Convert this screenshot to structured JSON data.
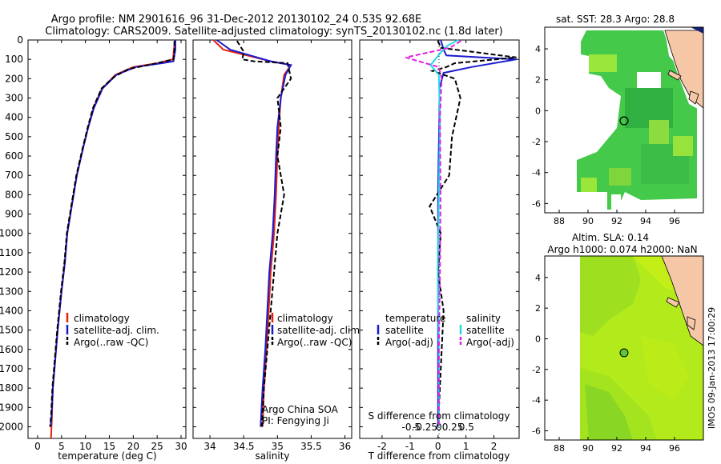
{
  "title_line1": "Argo profile: NM 2901616_96 31-Dec-2012 20130102_24 0.53S 92.68E",
  "title_line2": "Climatology: CARS2009. Satellite-adjusted climatology: synTS_20130102.nc (1.8d later)",
  "footer_stamp": "IMOS 09-Jan-2013 17:00:29",
  "colors": {
    "climatology": "#e8200c",
    "satellite_adj": "#1a1ad0",
    "argo": "#000000",
    "sal_satellite": "#22d8e8",
    "sal_argo": "#e020e0"
  },
  "chart_data": [
    {
      "type": "line",
      "xlabel": "temperature (deg C)",
      "ylabel": "",
      "xlim": [
        -2,
        31
      ],
      "ylim": [
        2060,
        0
      ],
      "xticks": [
        0,
        5,
        10,
        15,
        20,
        25,
        30
      ],
      "xtick_labels": [
        "0",
        "5",
        "10",
        "15",
        "20",
        "25",
        "30"
      ],
      "yticks": [
        0,
        100,
        200,
        300,
        400,
        500,
        600,
        700,
        800,
        900,
        1000,
        1100,
        1200,
        1300,
        1400,
        1500,
        1600,
        1700,
        1800,
        1900,
        2000
      ],
      "ytick_labels": [
        "0",
        "100",
        "200",
        "300",
        "400",
        "500",
        "600",
        "700",
        "800",
        "900",
        "1000",
        "1100",
        "1200",
        "1300",
        "1400",
        "1500",
        "1600",
        "1700",
        "1800",
        "1900",
        "2000"
      ],
      "legend": [
        "climatology",
        "satellite-adj. clim.",
        "Argo(..raw -QC)"
      ],
      "series": [
        {
          "name": "climatology",
          "color": "red",
          "style": "solid",
          "x": [
            28.7,
            28.5,
            28.3,
            25,
            20,
            16.3,
            13.5,
            11.7,
            10.6,
            9.6,
            8.2,
            7.2,
            6.2,
            5.7,
            5.0,
            4.2,
            3.7,
            3.2,
            3.0,
            2.8
          ],
          "y": [
            0,
            50,
            100,
            120,
            140,
            180,
            250,
            350,
            450,
            550,
            700,
            850,
            1000,
            1150,
            1300,
            1500,
            1650,
            1800,
            1950,
            2060
          ]
        },
        {
          "name": "satellite-adj. clim.",
          "color": "blue",
          "style": "solid",
          "x": [
            28.8,
            28.8,
            28.4,
            26,
            20.5,
            16.5,
            13.6,
            11.8,
            10.6,
            9.6,
            8.2,
            7.2,
            6.2,
            5.7,
            5.0,
            4.2,
            3.7,
            3.2,
            2.9,
            2.7
          ],
          "y": [
            0,
            50,
            110,
            120,
            140,
            180,
            250,
            350,
            450,
            550,
            700,
            850,
            1000,
            1150,
            1300,
            1500,
            1650,
            1800,
            1950,
            2000
          ]
        },
        {
          "name": "Argo(..raw -QC)",
          "color": "black",
          "style": "dashed",
          "x": [
            28.6,
            28.6,
            28.4,
            24,
            19,
            16,
            13.4,
            11.6,
            10.5,
            9.5,
            8.1,
            7.1,
            6.1,
            5.6,
            4.9,
            4.1,
            3.6,
            3.1,
            2.8,
            2.6
          ],
          "y": [
            5,
            50,
            100,
            125,
            150,
            190,
            250,
            350,
            450,
            550,
            700,
            850,
            1000,
            1150,
            1300,
            1500,
            1650,
            1800,
            1950,
            2000
          ]
        }
      ]
    },
    {
      "type": "line",
      "xlabel": "salinity",
      "ylabel": "",
      "xlim": [
        33.75,
        36.1
      ],
      "ylim": [
        2060,
        0
      ],
      "xticks": [
        34,
        34.5,
        35,
        35.5,
        36
      ],
      "xtick_labels": [
        "34",
        "34.5",
        "35",
        "35.5",
        "36"
      ],
      "legend": [
        "climatology",
        "satellite-adj. clim.",
        "Argo(..raw -QC)"
      ],
      "annotations": [
        "Argo China SOA",
        "PI: Fengying Ji"
      ],
      "series": [
        {
          "name": "climatology",
          "color": "red",
          "style": "solid",
          "x": [
            34.05,
            34.2,
            34.55,
            34.9,
            35.2,
            35.1,
            35.05,
            35.02,
            35.0,
            34.98,
            34.95,
            34.9,
            34.87,
            34.84,
            34.8,
            34.78
          ],
          "y": [
            0,
            50,
            80,
            110,
            130,
            180,
            300,
            450,
            600,
            800,
            1000,
            1200,
            1400,
            1600,
            1800,
            2000
          ]
        },
        {
          "name": "satellite-adj. clim.",
          "color": "blue",
          "style": "solid",
          "x": [
            34.1,
            34.3,
            34.6,
            34.9,
            35.2,
            35.12,
            35.05,
            35.0,
            34.98,
            34.96,
            34.93,
            34.88,
            34.85,
            34.82,
            34.78,
            34.75
          ],
          "y": [
            0,
            50,
            80,
            110,
            130,
            180,
            300,
            450,
            600,
            800,
            1000,
            1200,
            1400,
            1600,
            1800,
            2000
          ]
        },
        {
          "name": "Argo(..raw -QC)",
          "color": "black",
          "style": "dashed",
          "x": [
            34.4,
            34.5,
            34.48,
            34.65,
            35.15,
            35.2,
            35.0,
            35.05,
            35.0,
            35.1,
            35.0,
            34.95,
            34.9,
            34.85,
            34.8,
            34.77
          ],
          "y": [
            5,
            60,
            100,
            110,
            120,
            200,
            300,
            450,
            600,
            800,
            1000,
            1200,
            1400,
            1600,
            1800,
            2000
          ]
        }
      ]
    },
    {
      "type": "line",
      "xlabel": "T difference from climatology",
      "xlabel2": "S difference from climatology",
      "xlim": [
        -2.8,
        2.9
      ],
      "ylim": [
        2060,
        0
      ],
      "xticks": [
        -2,
        -1,
        0,
        1,
        2
      ],
      "xtick_labels": [
        "-2",
        "-1",
        "0",
        "1",
        "2"
      ],
      "xticks_sal": [
        -0.5,
        -0.25,
        0,
        0.25,
        0.5
      ],
      "xtick_labels_sal": [
        "-0.5",
        "-0.25",
        "0",
        "0.25",
        "0.5"
      ],
      "legend_headers": [
        "temperature",
        "salinity"
      ],
      "legend": [
        "satellite",
        "Argo(-adj)",
        "satellite",
        "Argo(-adj)"
      ],
      "series": [
        {
          "name": "satellite",
          "group": "temperature",
          "color": "blue",
          "style": "solid",
          "x": [
            0.1,
            0.2,
            0.3,
            2.8,
            1.2,
            0.2,
            0.05,
            0.05,
            0.02,
            0.0,
            0.0,
            0.0,
            0.0,
            0.0
          ],
          "y": [
            0,
            50,
            80,
            100,
            140,
            170,
            250,
            400,
            600,
            800,
            1000,
            1400,
            1800,
            2000
          ]
        },
        {
          "name": "Argo(-adj)",
          "group": "temperature",
          "color": "black",
          "style": "dashed",
          "x": [
            0.0,
            0.1,
            2.8,
            0.6,
            0.3,
            -0.2,
            0.6,
            0.8,
            0.5,
            0.4,
            -0.3,
            0.1,
            0.0,
            0.2,
            0.1,
            0.0
          ],
          "y": [
            5,
            40,
            90,
            120,
            140,
            160,
            200,
            300,
            500,
            700,
            860,
            1000,
            1200,
            1400,
            1700,
            2000
          ]
        },
        {
          "name": "satellite",
          "group": "salinity",
          "color": "cyan",
          "style": "solid",
          "x": [
            0.35,
            0.15,
            0.05,
            -0.15,
            0.0,
            0.02,
            0.0,
            -0.02,
            0.0,
            0.0,
            0.0
          ],
          "y": [
            0,
            30,
            60,
            130,
            180,
            400,
            800,
            1200,
            1600,
            1900,
            2000
          ]
        },
        {
          "name": "Argo(-adj)",
          "group": "salinity",
          "color": "magenta",
          "style": "dashed",
          "x": [
            0.4,
            0.2,
            -0.6,
            0.0,
            0.05,
            0.02,
            0.03,
            0.02,
            0.0,
            0.0,
            0.0
          ],
          "y": [
            5,
            40,
            90,
            140,
            200,
            400,
            800,
            1200,
            1600,
            1900,
            2000
          ]
        }
      ]
    },
    {
      "type": "heatmap",
      "title": "sat. SST: 28.3  Argo: 28.8",
      "xlim": [
        87,
        98
      ],
      "ylim": [
        -6.6,
        5.4
      ],
      "xticks": [
        88,
        90,
        92,
        94,
        96
      ],
      "xtick_labels": [
        "88",
        "90",
        "92",
        "94",
        "96"
      ],
      "yticks": [
        -6,
        -4,
        -2,
        0,
        2,
        4
      ],
      "ytick_labels": [
        "-6",
        "-4",
        "-2",
        "0",
        "2",
        "4"
      ],
      "argo_position": {
        "lon": 92.68,
        "lat": -0.53
      }
    },
    {
      "type": "heatmap",
      "title": "Altim. SLA: 0.14",
      "subtitle": "Argo h1000: 0.074 h2000: NaN",
      "xlim": [
        87,
        98
      ],
      "ylim": [
        -6.6,
        5.4
      ],
      "xticks": [
        88,
        90,
        92,
        94,
        96
      ],
      "xtick_labels": [
        "88",
        "90",
        "92",
        "94",
        "96"
      ],
      "yticks": [
        -6,
        -4,
        -2,
        0,
        2,
        4
      ],
      "ytick_labels": [
        "-6",
        "-4",
        "-2",
        "0",
        "2",
        "4"
      ],
      "argo_position": {
        "lon": 92.68,
        "lat": -0.53
      }
    }
  ]
}
